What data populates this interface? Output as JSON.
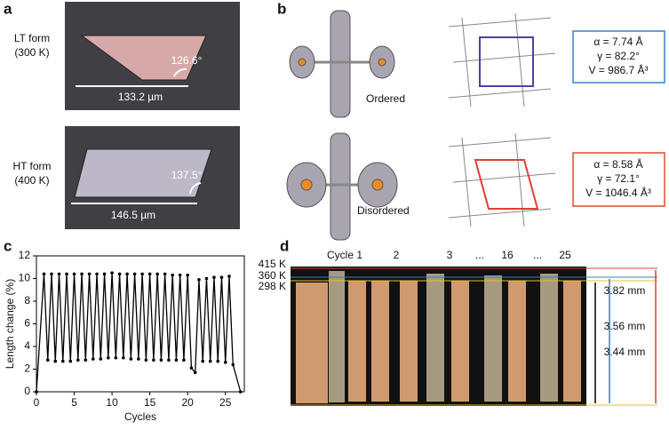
{
  "panel_a": {
    "label": "a",
    "lt": {
      "form": "LT form",
      "temp": "(300 K)",
      "angle": "126.6°",
      "length": "133.2 µm"
    },
    "ht": {
      "form": "HT form",
      "temp": "(400 K)",
      "angle": "137.5°",
      "length": "146.5 µm"
    }
  },
  "panel_b": {
    "label": "b",
    "ordered": "Ordered",
    "disordered": "Disordered",
    "ordered_cell": [
      "α = 7.74 Å",
      "γ = 82.2°",
      "V = 986.7 Å³"
    ],
    "disordered_cell": [
      "α = 8.58 Å",
      "γ = 72.1°",
      "V = 1046.4 Å³"
    ]
  },
  "panel_c": {
    "label": "c"
  },
  "chart_data": {
    "type": "line",
    "x_label": "Cycles",
    "y_label": "Length change (%)",
    "x": [
      0,
      1,
      1.5,
      2,
      2.5,
      3,
      3.5,
      4,
      4.5,
      5,
      5.5,
      6,
      6.5,
      7,
      7.5,
      8,
      8.5,
      9,
      9.5,
      10,
      10.5,
      11,
      11.5,
      12,
      12.5,
      13,
      13.5,
      14,
      14.5,
      15,
      15.5,
      16,
      16.5,
      17,
      17.5,
      18,
      18.5,
      19,
      19.5,
      20,
      20.5,
      21,
      21.5,
      22,
      22.5,
      23,
      23.5,
      24,
      24.5,
      25,
      25.5,
      26,
      27
    ],
    "values": [
      0,
      10.4,
      2.8,
      10.4,
      2.7,
      10.4,
      2.7,
      10.4,
      2.7,
      10.4,
      2.8,
      10.4,
      2.8,
      10.4,
      2.9,
      10.4,
      2.9,
      10.4,
      3.0,
      10.5,
      3.0,
      10.4,
      3.0,
      10.4,
      2.9,
      10.4,
      2.9,
      10.4,
      2.8,
      10.4,
      2.8,
      10.4,
      2.8,
      10.4,
      2.8,
      10.3,
      2.8,
      10.3,
      2.8,
      10.3,
      2.1,
      1.7,
      9.9,
      2.7,
      10.0,
      2.7,
      10.1,
      2.7,
      10.1,
      2.6,
      10.2,
      2.4,
      0
    ],
    "color": "#000000",
    "xlim": [
      0,
      27.5
    ],
    "xticks": [
      0,
      5,
      10,
      15,
      20,
      25
    ],
    "ylim": [
      0,
      12
    ],
    "yticks": [
      0,
      2,
      4,
      6,
      8,
      10,
      12
    ]
  },
  "panel_d": {
    "label": "d",
    "temps": [
      "415 K",
      "360 K",
      "298 K"
    ],
    "cycles": [
      "Cycle 1",
      "2",
      "3",
      "...",
      "16",
      "...",
      "25"
    ],
    "lengths": [
      "3.82 mm",
      "3.56 mm",
      "3.44 mm"
    ]
  }
}
